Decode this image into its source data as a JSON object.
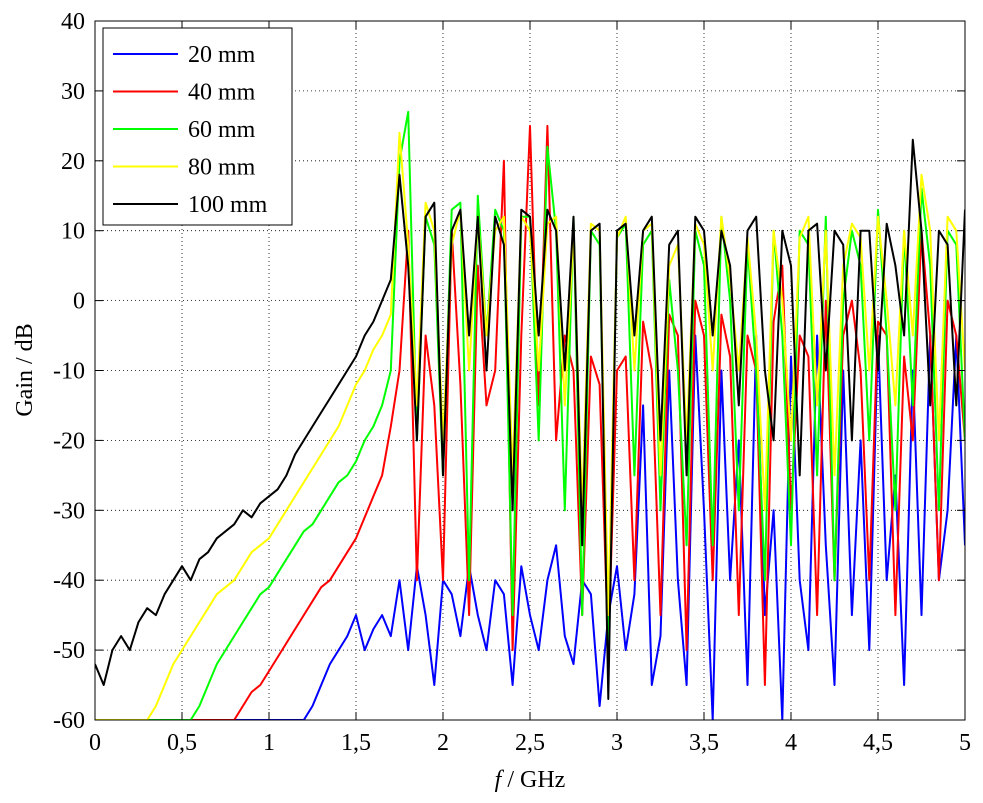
{
  "chart_data": {
    "type": "line",
    "title": "",
    "xlabel_italic": "f",
    "xlabel_rest": " / GHz",
    "ylabel": "Gain / dB",
    "xlim": [
      0,
      5
    ],
    "ylim": [
      -60,
      40
    ],
    "grid": true,
    "legend_placement": "top-left",
    "x_ticks": [
      0,
      0.5,
      1,
      1.5,
      2,
      2.5,
      3,
      3.5,
      4,
      4.5,
      5
    ],
    "x_tick_labels": [
      "0",
      "0,5",
      "1",
      "1,5",
      "2",
      "2,5",
      "3",
      "3,5",
      "4",
      "4,5",
      "5"
    ],
    "y_ticks": [
      -60,
      -50,
      -40,
      -30,
      -20,
      -10,
      0,
      10,
      20,
      30,
      40
    ],
    "y_tick_labels": [
      "-60",
      "-50",
      "-40",
      "-30",
      "-20",
      "-10",
      "0",
      "10",
      "20",
      "30",
      "40"
    ],
    "x_start": 0,
    "x_step": 0.05,
    "series": [
      {
        "name": "20 mm",
        "color": "#0000ff",
        "values": [
          -60,
          -60,
          -60,
          -60,
          -60,
          -60,
          -60,
          -60,
          -60,
          -60,
          -60,
          -60,
          -60,
          -60,
          -60,
          -60,
          -60,
          -60,
          -60,
          -60,
          -60,
          -60,
          -60,
          -60,
          -60,
          -58,
          -55,
          -52,
          -50,
          -48,
          -45,
          -50,
          -47,
          -45,
          -48,
          -40,
          -50,
          -38,
          -45,
          -55,
          -40,
          -42,
          -48,
          -38,
          -45,
          -50,
          -40,
          -42,
          -55,
          -38,
          -45,
          -50,
          -40,
          -35,
          -48,
          -52,
          -40,
          -42,
          -58,
          -45,
          -38,
          -50,
          -42,
          -15,
          -55,
          -48,
          -10,
          -40,
          -55,
          -5,
          -30,
          -60,
          -10,
          -40,
          -20,
          -55,
          -5,
          -45,
          -30,
          -60,
          -8,
          -40,
          -50,
          -5,
          -35,
          -55,
          -10,
          -45,
          -20,
          -50,
          -5,
          -40,
          -25,
          -55,
          -10,
          -45,
          -5,
          -40,
          -30,
          -5,
          -35
        ]
      },
      {
        "name": "40 mm",
        "color": "#ff0000",
        "values": [
          -60,
          -60,
          -60,
          -60,
          -60,
          -60,
          -60,
          -60,
          -60,
          -60,
          -60,
          -60,
          -60,
          -60,
          -60,
          -60,
          -60,
          -58,
          -56,
          -55,
          -53,
          -51,
          -49,
          -47,
          -45,
          -43,
          -41,
          -40,
          -38,
          -36,
          -34,
          -31,
          -28,
          -25,
          -18,
          -10,
          10,
          -40,
          -5,
          -15,
          -40,
          10,
          -12,
          -45,
          5,
          -15,
          -10,
          20,
          -50,
          -5,
          25,
          -15,
          25,
          -20,
          -5,
          -10,
          -45,
          -8,
          -12,
          -50,
          -10,
          -8,
          -40,
          -3,
          -10,
          -45,
          -2,
          -5,
          -50,
          0,
          -5,
          -40,
          -2,
          -8,
          -45,
          -5,
          -10,
          -55,
          -3,
          5,
          -30,
          -5,
          -8,
          -45,
          0,
          -40,
          -5,
          0,
          -10,
          -40,
          -3,
          -5,
          -45,
          -8,
          -20,
          10,
          -5,
          -40,
          0,
          -5,
          -20
        ]
      },
      {
        "name": "60 mm",
        "color": "#00ff00",
        "values": [
          -60,
          -60,
          -60,
          -60,
          -60,
          -60,
          -60,
          -60,
          -60,
          -60,
          -60,
          -60,
          -58,
          -55,
          -52,
          -50,
          -48,
          -46,
          -44,
          -42,
          -41,
          -39,
          -37,
          -35,
          -33,
          -32,
          -30,
          -28,
          -26,
          -25,
          -23,
          -20,
          -18,
          -15,
          -10,
          20,
          27,
          -20,
          12,
          8,
          -25,
          13,
          14,
          -40,
          15,
          -5,
          13,
          10,
          -45,
          12,
          12,
          -20,
          22,
          10,
          -30,
          12,
          -45,
          10,
          8,
          -50,
          9,
          11,
          -25,
          8,
          10,
          -30,
          3,
          -10,
          -35,
          10,
          5,
          -35,
          12,
          0,
          -30,
          8,
          -10,
          -40,
          10,
          -5,
          -35,
          10,
          8,
          -25,
          12,
          -40,
          0,
          10,
          5,
          -20,
          13,
          -5,
          -30,
          10,
          -15,
          16,
          5,
          -30,
          10,
          8,
          -20
        ]
      },
      {
        "name": "80 mm",
        "color": "#ffff00",
        "values": [
          -60,
          -60,
          -60,
          -60,
          -60,
          -60,
          -60,
          -58,
          -55,
          -52,
          -50,
          -48,
          -46,
          -44,
          -42,
          -41,
          -40,
          -38,
          -36,
          -35,
          -34,
          -32,
          -30,
          -28,
          -26,
          -24,
          -22,
          -20,
          -18,
          -15,
          -12,
          -10,
          -7,
          -5,
          -2,
          24,
          8,
          -15,
          14,
          10,
          -20,
          8,
          13,
          -10,
          12,
          -5,
          10,
          12,
          -25,
          12,
          10,
          -10,
          11,
          12,
          -15,
          10,
          -30,
          11,
          10,
          -45,
          9,
          12,
          -10,
          10,
          11,
          -25,
          5,
          8,
          -20,
          11,
          8,
          -10,
          12,
          3,
          -10,
          9,
          -5,
          -30,
          10,
          0,
          -20,
          9,
          12,
          -15,
          10,
          -25,
          5,
          11,
          9,
          -10,
          12,
          0,
          -15,
          10,
          -5,
          18,
          10,
          -20,
          12,
          10,
          -10,
          12
        ]
      },
      {
        "name": "100 mm",
        "color": "#000000",
        "values": [
          -52,
          -55,
          -50,
          -48,
          -50,
          -46,
          -44,
          -45,
          -42,
          -40,
          -38,
          -40,
          -37,
          -36,
          -34,
          -33,
          -32,
          -30,
          -31,
          -29,
          -28,
          -27,
          -25,
          -22,
          -20,
          -18,
          -16,
          -14,
          -12,
          -10,
          -8,
          -5,
          -3,
          0,
          3,
          18,
          5,
          -20,
          12,
          14,
          -25,
          10,
          13,
          -5,
          12,
          -10,
          12,
          8,
          -30,
          13,
          12,
          -5,
          13,
          10,
          -10,
          12,
          -35,
          10,
          11,
          -57,
          10,
          11,
          -5,
          10,
          12,
          -20,
          8,
          10,
          -25,
          12,
          10,
          -5,
          10,
          5,
          -15,
          10,
          12,
          -10,
          -20,
          10,
          5,
          -25,
          10,
          11,
          -10,
          10,
          8,
          -20,
          10,
          10,
          -10,
          11,
          5,
          -5,
          23,
          10,
          -15,
          10,
          8,
          -15,
          13
        ]
      }
    ]
  }
}
